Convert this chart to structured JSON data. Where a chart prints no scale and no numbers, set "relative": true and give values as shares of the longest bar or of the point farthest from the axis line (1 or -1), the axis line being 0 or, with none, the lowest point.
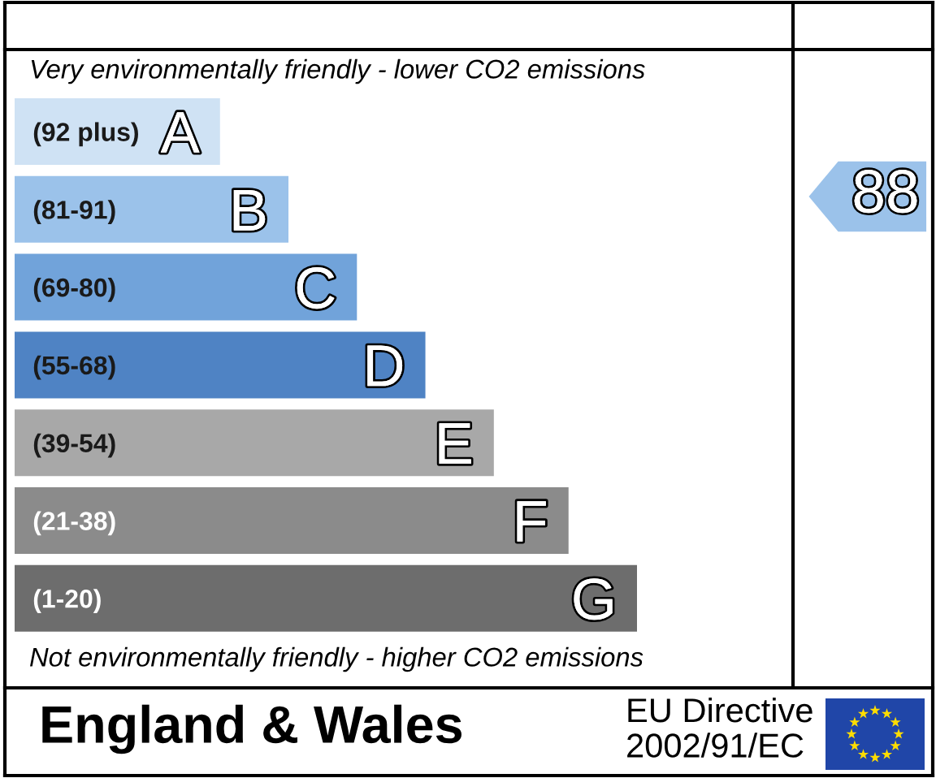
{
  "chart_data": {
    "type": "bar",
    "orientation": "horizontal",
    "relative": true,
    "categories": [
      "(92 plus)",
      "(81-91)",
      "(69-80)",
      "(55-68)",
      "(39-54)",
      "(21-38)",
      "(1-20)"
    ],
    "values": [
      0.33,
      0.44,
      0.55,
      0.66,
      0.77,
      0.89,
      1
    ],
    "colors": [
      "#cfe2f4",
      "#9bc2ea",
      "#71a3da",
      "#4f83c4",
      "#a8a8a8",
      "#8b8b8b",
      "#6d6d6d"
    ],
    "tick_labels": "y",
    "annotations": [
      "Very environmentally friendly - lower CO2 emissions",
      "Not environmentally friendly - higher CO2 emissions",
      "England & Wales",
      "EU Directive\n2002/91/EC",
      "88",
      {
        "text": "A",
        "x": 0.33,
        "y": "(92 plus)"
      },
      {
        "text": "B",
        "x": 0.44,
        "y": "(81-91)"
      },
      {
        "text": "C",
        "x": 0.55,
        "y": "(69-80)"
      },
      {
        "text": "D",
        "x": 0.66,
        "y": "(55-68)"
      },
      {
        "text": "E",
        "x": 0.77,
        "y": "(39-54)"
      },
      {
        "text": "F",
        "x": 0.89,
        "y": "(21-38)"
      },
      {
        "text": "G",
        "x": 1,
        "y": "(1-20)"
      }
    ]
  }
}
